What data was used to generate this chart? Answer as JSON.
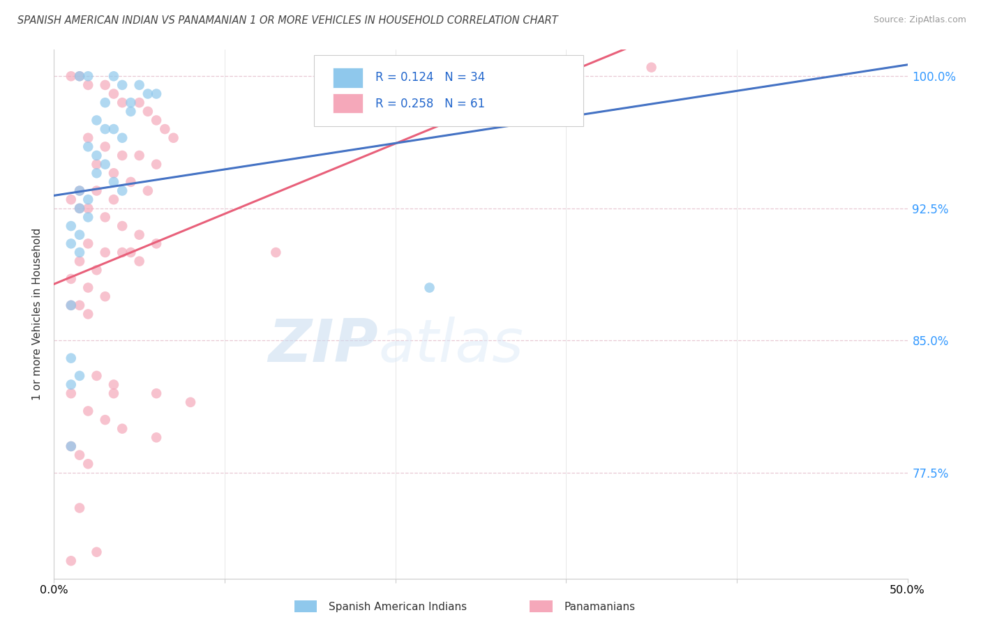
{
  "title": "SPANISH AMERICAN INDIAN VS PANAMANIAN 1 OR MORE VEHICLES IN HOUSEHOLD CORRELATION CHART",
  "source": "Source: ZipAtlas.com",
  "ylabel": "1 or more Vehicles in Household",
  "xlim": [
    0.0,
    50.0
  ],
  "ylim": [
    71.5,
    101.5
  ],
  "yticks": [
    77.5,
    85.0,
    92.5,
    100.0
  ],
  "ytick_labels": [
    "77.5%",
    "85.0%",
    "92.5%",
    "100.0%"
  ],
  "legend_labels": [
    "Spanish American Indians",
    "Panamanians"
  ],
  "R_blue": 0.124,
  "N_blue": 34,
  "R_pink": 0.258,
  "N_pink": 61,
  "color_blue": "#8FC8EC",
  "color_pink": "#F5A8BA",
  "color_blue_line": "#4472C4",
  "color_pink_line": "#E8607A",
  "color_dashed": "#A8C4DC",
  "background_color": "#FFFFFF",
  "blue_x": [
    1.5,
    2.0,
    3.5,
    4.0,
    5.0,
    5.5,
    6.0,
    3.0,
    4.5,
    4.5,
    2.5,
    3.0,
    3.5,
    4.0,
    2.0,
    2.5,
    3.0,
    2.5,
    3.5,
    4.0,
    1.5,
    2.0,
    1.5,
    2.0,
    1.0,
    1.5,
    1.0,
    1.5,
    1.0,
    1.0,
    1.5,
    1.0,
    1.0,
    22.0
  ],
  "blue_y": [
    100.0,
    100.0,
    100.0,
    99.5,
    99.5,
    99.0,
    99.0,
    98.5,
    98.5,
    98.0,
    97.5,
    97.0,
    97.0,
    96.5,
    96.0,
    95.5,
    95.0,
    94.5,
    94.0,
    93.5,
    93.5,
    93.0,
    92.5,
    92.0,
    91.5,
    91.0,
    90.5,
    90.0,
    87.0,
    84.0,
    83.0,
    82.5,
    79.0,
    88.0
  ],
  "pink_x": [
    1.0,
    1.5,
    2.0,
    3.0,
    3.5,
    4.0,
    5.0,
    5.5,
    6.0,
    6.5,
    7.0,
    2.0,
    3.0,
    4.0,
    5.0,
    6.0,
    2.5,
    3.5,
    4.5,
    5.5,
    1.5,
    2.5,
    3.5,
    1.0,
    1.5,
    2.0,
    3.0,
    4.0,
    5.0,
    6.0,
    2.0,
    3.0,
    4.0,
    5.0,
    1.5,
    2.5,
    1.0,
    2.0,
    3.0,
    4.5,
    1.0,
    1.5,
    2.0,
    3.5,
    6.0,
    8.0,
    13.0,
    2.5,
    3.5,
    2.0,
    3.0,
    4.0,
    6.0,
    1.0,
    1.5,
    2.0,
    1.0,
    1.5,
    2.5,
    35.0,
    1.0
  ],
  "pink_y": [
    100.0,
    100.0,
    99.5,
    99.5,
    99.0,
    98.5,
    98.5,
    98.0,
    97.5,
    97.0,
    96.5,
    96.5,
    96.0,
    95.5,
    95.5,
    95.0,
    95.0,
    94.5,
    94.0,
    93.5,
    93.5,
    93.5,
    93.0,
    93.0,
    92.5,
    92.5,
    92.0,
    91.5,
    91.0,
    90.5,
    90.5,
    90.0,
    90.0,
    89.5,
    89.5,
    89.0,
    88.5,
    88.0,
    87.5,
    90.0,
    87.0,
    87.0,
    86.5,
    82.5,
    82.0,
    81.5,
    90.0,
    83.0,
    82.0,
    81.0,
    80.5,
    80.0,
    79.5,
    79.0,
    78.5,
    78.0,
    82.0,
    75.5,
    73.0,
    100.5,
    72.5
  ]
}
